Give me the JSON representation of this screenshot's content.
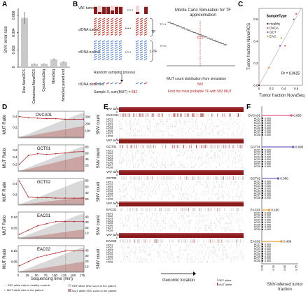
{
  "panels": {
    "A": "A",
    "B": "B",
    "C": "C",
    "D": "D",
    "E": "E",
    "F": "F"
  },
  "colors": {
    "dark_red": "#7b1c1c",
    "red": "#b22222",
    "pink": "#e8578a",
    "blue": "#4f7fd1",
    "purple": "#7b5fc9",
    "orange": "#ee9a3a",
    "gray_fill": "#d9d9d9",
    "mut_fill": "#c89a9a"
  },
  "panelA": {
    "ylabel": "SNV error rate",
    "yticks": [
      "0",
      "0.002",
      "0.004",
      "0.006"
    ],
    "chart_data": {
      "type": "bar",
      "categories": [
        "Raw NanoRCS",
        "Consensus NanoRCS",
        "CyclomicsSeq",
        "NovaSeq",
        "NovaSeq paired end"
      ],
      "values": [
        0.0057,
        0.0004,
        0.0004,
        0.0009,
        0.0006
      ],
      "errors": [
        0.0007,
        5e-05,
        5e-05,
        0.0001,
        0.0001
      ],
      "ylim": [
        0,
        0.0068
      ]
    }
  },
  "panelB": {
    "rows": [
      "VAF tumor",
      "cfDNA tumor",
      "cfDNA normal",
      "cfDNA observed"
    ],
    "tf_labels": [
      "TF",
      "1-TF"
    ],
    "sample_text": "Sample X, sum(MUT) =",
    "sample_value": "582",
    "random_text": "Random sampling process",
    "title": "Monte Carlo Simulation for TF approximation",
    "tf1": "TF=1",
    "tf0": "TF=0",
    "xlabel": "MUT count distribution from simulation",
    "marker": "582",
    "find_text": "Find the most probable TF with 582 MUT",
    "dots": "• • •"
  },
  "panelC": {
    "xlabel": "Tumor fraction NovaSeq",
    "ylabel": "Tumor fraction NanoRCS",
    "r2": "R² = 0.9625",
    "legend_title": "SampleType",
    "legend": [
      {
        "name": "Healthy",
        "color": "#7b1c1c"
      },
      {
        "name": "OVCA",
        "color": "#e8578a"
      },
      {
        "name": "GCT",
        "color": "#7b5fc9"
      },
      {
        "name": "EAC",
        "color": "#ee9a3a"
      }
    ],
    "xticks": [
      "0",
      "0.2",
      "0.4",
      "0.6"
    ],
    "yticks": [
      "0.0",
      "0.2",
      "0.4",
      "0.6"
    ],
    "chart_data": {
      "type": "scatter",
      "x": [
        0.0,
        0.16,
        0.34,
        0.36,
        0.42,
        0.56,
        0.6
      ],
      "y": [
        0.0,
        0.16,
        0.36,
        0.43,
        0.36,
        0.6,
        0.65
      ],
      "groups": [
        "Healthy",
        "EAC",
        "GCT",
        "EAC",
        "OVCA",
        "GCT",
        "OVCA"
      ],
      "xlim": [
        0,
        0.7
      ],
      "ylim": [
        0,
        0.7
      ]
    }
  },
  "panelD": {
    "xlabel": "Sequencing time (min)",
    "ylabel_left": "MUT Ratio",
    "ylabel_right": "SNV count",
    "xticks": [
      "0",
      "25",
      "50",
      "75",
      "100",
      "125",
      "150",
      "175"
    ],
    "charts": [
      {
        "sample": "OVCA01",
        "yl": [
          "0.2",
          "0.4"
        ],
        "yr": [
          "100",
          "200",
          "300"
        ],
        "ymax": 350,
        "mut_ratio": [
          0.4,
          0.38,
          0.37,
          0.36,
          0.36,
          0.35,
          0.35,
          0.35
        ],
        "ref_ratio": [
          0.01,
          0.01,
          0.01,
          0.01,
          0.01,
          0.01,
          0.01,
          0.01
        ]
      },
      {
        "sample": "GCT01",
        "yl": [
          "0.2",
          "0.4",
          "0.6"
        ],
        "yr": [
          "20",
          "40",
          "60",
          "80"
        ],
        "ymax": 80,
        "mut_ratio": [
          0.2,
          0.45,
          0.5,
          0.48,
          0.5,
          0.52,
          0.55,
          0.56
        ],
        "ref_ratio": [
          0.01,
          0.01,
          0.01,
          0.01,
          0.01,
          0.01,
          0.01,
          0.01
        ]
      },
      {
        "sample": "GCT02",
        "yl": [
          "0.2",
          "0.4"
        ],
        "yr": [
          "20",
          "40",
          "60",
          "80"
        ],
        "ymax": 80,
        "mut_ratio": [
          0.45,
          0.15,
          0.14,
          0.14,
          0.13,
          0.13,
          0.13,
          0.13
        ],
        "ref_ratio": [
          0.01,
          0.01,
          0.01,
          0.01,
          0.01,
          0.01,
          0.01,
          0.01
        ]
      },
      {
        "sample": "EAC01",
        "yl": [
          "0.05",
          "0.10"
        ],
        "yr": [
          "10",
          "20",
          "30",
          "40"
        ],
        "ymax": 45,
        "mut_ratio": [
          0.02,
          0.04,
          0.06,
          0.07,
          0.08,
          0.08,
          0.08,
          0.08
        ],
        "ref_ratio": [
          0.01,
          0.01,
          0.01,
          0.01,
          0.01,
          0.01,
          0.01,
          0.01
        ]
      },
      {
        "sample": "EAC02",
        "yl": [
          "0.05",
          "0.10"
        ],
        "yr": [
          "10",
          "20",
          "30",
          "40"
        ],
        "ymax": 45,
        "mut_ratio": [
          0.03,
          0.05,
          0.07,
          0.08,
          0.09,
          0.1,
          0.1,
          0.1
        ],
        "ref_ratio": [
          0.01,
          0.01,
          0.01,
          0.01,
          0.01,
          0.01,
          0.01,
          0.01
        ]
      }
    ],
    "legend": [
      "REF allele ratio in healthy controls",
      "MUT allele ratio in the patient",
      "REF allele SNV count in the patient",
      "MUT allele SNV count in the patient"
    ]
  },
  "panelE": {
    "vaf_label": "VAF tumor",
    "one": "1",
    "zero": "0",
    "samples": [
      "OVCA01",
      "GCT01",
      "GCT02",
      "EAC01",
      "EAC02"
    ],
    "healthy": [
      "HC01",
      "HC02",
      "HC03",
      "HC04",
      "HC05",
      "HC06",
      "HC07",
      "HC08"
    ],
    "xlabel": "Genomic location",
    "legend": [
      "REF allele",
      "MUT allele"
    ]
  },
  "panelF": {
    "xlabel": "SNV-inferred tumor fraction",
    "xticks": [
      "0.00",
      "0.25",
      "0.50",
      "0.75"
    ],
    "groups": [
      {
        "sample": "OVCA01",
        "value": "0.650",
        "tf": 0.65,
        "color": "#e8578a",
        "hc": [
          "0.000",
          "0.000",
          "0.000",
          "0.000",
          "0.000",
          "0.000",
          "0.000",
          "0.000"
        ]
      },
      {
        "sample": "GCT01",
        "value": "0.690",
        "tf": 0.69,
        "color": "#7b5fc9",
        "hc": [
          "0.000",
          "0.000",
          "0.000",
          "0.000",
          "0.000",
          "0.000",
          "0.000",
          "0.000"
        ]
      },
      {
        "sample": "GCT02",
        "value": "0.360",
        "tf": 0.36,
        "color": "#7b5fc9",
        "hc": [
          "0.000",
          "0.000",
          "0.000",
          "0.000",
          "0.000",
          "0.000",
          "0.000",
          "0.000"
        ]
      },
      {
        "sample": "EAC01",
        "value": "0.160",
        "tf": 0.16,
        "color": "#ee9a3a",
        "hc": [
          "0.003",
          "0.000",
          "0.000",
          "0.000",
          "0.000",
          "0.000",
          "0.000",
          "0.000"
        ]
      },
      {
        "sample": "EAC02",
        "value": "0.430",
        "tf": 0.43,
        "color": "#ee9a3a",
        "hc": [
          "0.000",
          "0.000",
          "0.000",
          "0.000",
          "0.000",
          "0.000",
          "0.000",
          "0.000"
        ]
      }
    ]
  }
}
